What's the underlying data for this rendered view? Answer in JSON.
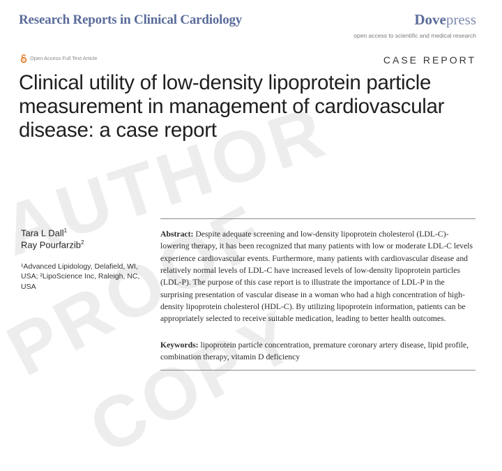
{
  "header": {
    "journal": "Research Reports in Clinical Cardiology",
    "publisher_bold": "Dove",
    "publisher_light": "press",
    "tagline": "open access to scientific and medical research"
  },
  "article": {
    "open_access": "Open Access Full Text Article",
    "type": "CASE REPORT",
    "title": "Clinical utility of low-density lipoprotein particle measurement in management of cardiovascular disease: a case report"
  },
  "authors": {
    "author1": "Tara L Dall",
    "author1_sup": "1",
    "author2": "Ray Pourfarzib",
    "author2_sup": "2",
    "affiliations": "¹Advanced Lipidology, Delafield, WI, USA; ²LipoScience Inc, Raleigh, NC, USA"
  },
  "abstract": {
    "label": "Abstract:",
    "text": "Despite adequate screening and low-density lipoprotein cholesterol (LDL-C)-lowering therapy, it has been recognized that many patients with low or moderate LDL-C levels experience cardiovascular events. Furthermore, many patients with cardiovascular disease and relatively normal levels of LDL-C have increased levels of low-density lipoprotein particles (LDL-P). The purpose of this case report is to illustrate the importance of LDL-P in the surprising presentation of vascular disease in a woman who had a high concentration of high-density lipoprotein cholesterol (HDL-C). By utilizing lipoprotein information, patients can be appropriately selected to receive suitable medication, leading to better health outcomes."
  },
  "keywords": {
    "label": "Keywords:",
    "text": "lipoprotein particle concentration, premature coronary artery disease, lipid profile, combination therapy, vitamin D deficiency"
  },
  "watermark": {
    "word1": "AUTHOR",
    "word2": "PROOF",
    "word3": "COPY"
  },
  "colors": {
    "journal_blue": "#5a6c9a",
    "open_access_orange": "#e07b2a"
  }
}
